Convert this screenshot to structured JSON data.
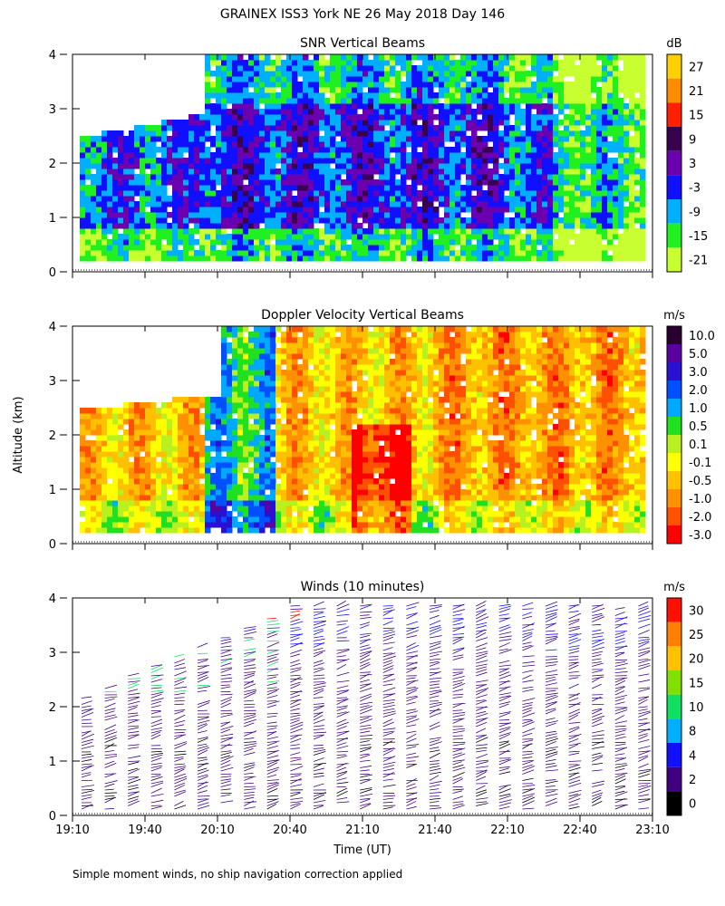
{
  "title": "GRAINEX ISS3 York NE  26 May 2018 Day 146",
  "ylabel": "Altitude (km)",
  "xlabel": "Time (UT)",
  "footnote": "Simple moment winds, no ship navigation correction applied",
  "chart_data": [
    {
      "type": "heatmap",
      "title": "SNR Vertical Beams",
      "ylabel": "Altitude (km)",
      "xlim": [
        "19:10",
        "23:10"
      ],
      "ylim": [
        0,
        4
      ],
      "yticks": [
        0,
        1,
        2,
        3,
        4
      ],
      "colorbar": {
        "unit": "dB",
        "tick_labels": [
          "27",
          "21",
          "15",
          "9",
          "3",
          "-3",
          "-9",
          "-15",
          "-21"
        ],
        "colors": [
          "#ffd000",
          "#ff8c00",
          "#ff2000",
          "#3a0050",
          "#6a00b0",
          "#1010ff",
          "#00b0ff",
          "#20f020",
          "#c8ff30"
        ]
      }
    },
    {
      "type": "heatmap",
      "title": "Doppler Velocity Vertical Beams",
      "ylabel": "Altitude (km)",
      "xlim": [
        "19:10",
        "23:10"
      ],
      "ylim": [
        0,
        4
      ],
      "yticks": [
        0,
        1,
        2,
        3,
        4
      ],
      "colorbar": {
        "unit": "m/s",
        "tick_labels": [
          "10.0",
          "5.0",
          "3.0",
          "2.0",
          "1.0",
          "0.5",
          "0.1",
          "-0.1",
          "-0.5",
          "-1.0",
          "-2.0",
          "-3.0"
        ],
        "colors": [
          "#2a0030",
          "#5a00a0",
          "#2a10d0",
          "#0050ff",
          "#00a8ff",
          "#20e020",
          "#b8f020",
          "#ffff00",
          "#ffc000",
          "#ff9000",
          "#ff5000",
          "#ff0000"
        ]
      }
    },
    {
      "type": "scatter",
      "title": "Winds (10 minutes)",
      "ylabel": "Altitude (km)",
      "xlabel": "Time (UT)",
      "xlim": [
        "19:10",
        "23:10"
      ],
      "ylim": [
        0,
        4
      ],
      "yticks": [
        0,
        1,
        2,
        3,
        4
      ],
      "xticks": [
        "19:10",
        "19:40",
        "20:10",
        "20:40",
        "21:10",
        "21:40",
        "22:10",
        "22:40",
        "23:10"
      ],
      "colorbar": {
        "unit": "m/s",
        "tick_labels": [
          "30",
          "25",
          "20",
          "15",
          "10",
          "8",
          "4",
          "2",
          "0"
        ],
        "colors": [
          "#ff1000",
          "#ff8000",
          "#ffc000",
          "#80e000",
          "#10e060",
          "#00b0ff",
          "#1010ff",
          "#400080",
          "#000000"
        ]
      }
    }
  ]
}
